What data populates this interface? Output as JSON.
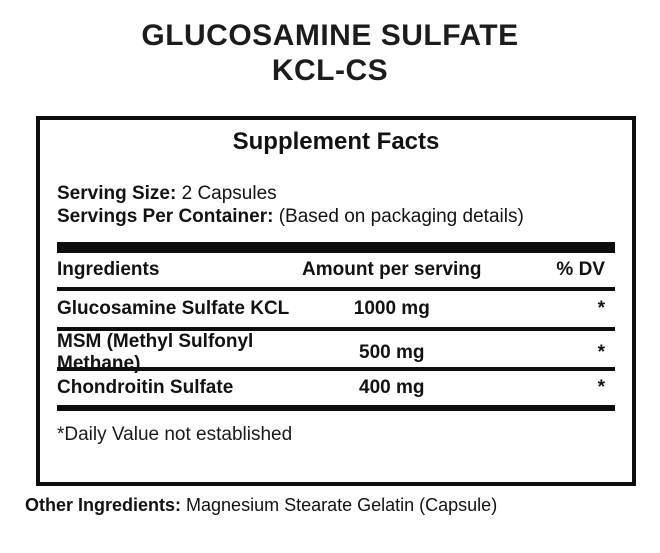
{
  "page": {
    "background_color": "#ffffff",
    "text_color": "#141414",
    "accent_color": "#0d0d0d"
  },
  "title": {
    "line1": "GLUCOSAMINE SULFATE",
    "line2": "KCL-CS"
  },
  "facts_panel": {
    "heading": "Supplement Facts",
    "serving_size_label": "Serving Size:",
    "serving_size_value": "2 Capsules",
    "servings_per_container_label": "Servings Per Container:",
    "servings_per_container_value": "(Based on packaging details)",
    "columns": {
      "ingredient": "Ingredients",
      "amount": "Amount per serving",
      "dv": "% DV"
    },
    "rows": [
      {
        "ingredient": "Glucosamine Sulfate KCL",
        "amount": "1000 mg",
        "dv": "*"
      },
      {
        "ingredient": "MSM (Methyl Sulfonyl Methane)",
        "amount": "500 mg",
        "dv": "*"
      },
      {
        "ingredient": "Chondroitin Sulfate",
        "amount": "400 mg",
        "dv": "*"
      }
    ],
    "footnote": "*Daily Value not established"
  },
  "other_ingredients": {
    "label": "Other Ingredients:",
    "value": "Magnesium Stearate Gelatin (Capsule)"
  }
}
